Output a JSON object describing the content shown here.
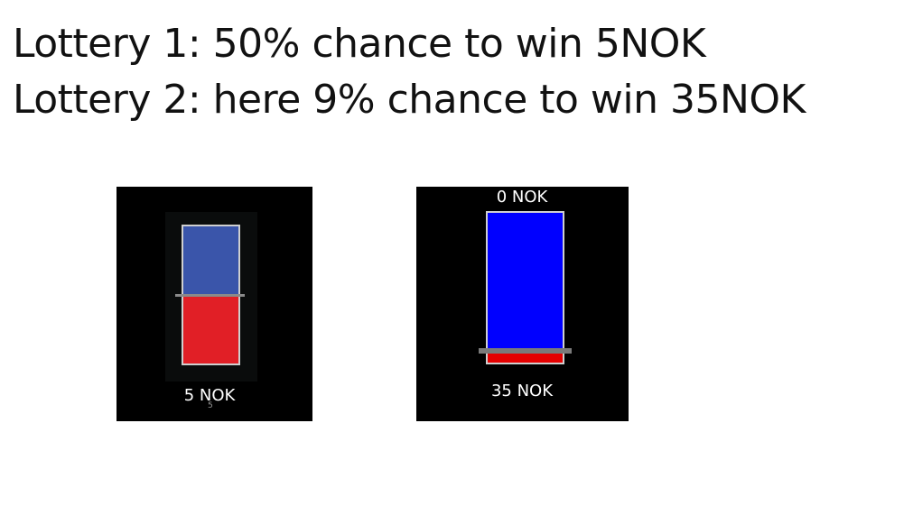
{
  "title": {
    "line1": "Lottery 1: 50% chance to win 5NOK",
    "line2": "Lottery 2: here 9% chance to win 35NOK"
  },
  "lottery1": {
    "win_probability": 0.5,
    "colors": {
      "lose": "#3a55aa",
      "win": "#e11f26"
    },
    "bottom_label": "5 NOK",
    "small_mark": "5"
  },
  "lottery2": {
    "win_probability": 0.09,
    "colors": {
      "lose": "#0000ff",
      "win": "#e50000"
    },
    "top_label": "0 NOK",
    "bottom_label": "35 NOK"
  }
}
